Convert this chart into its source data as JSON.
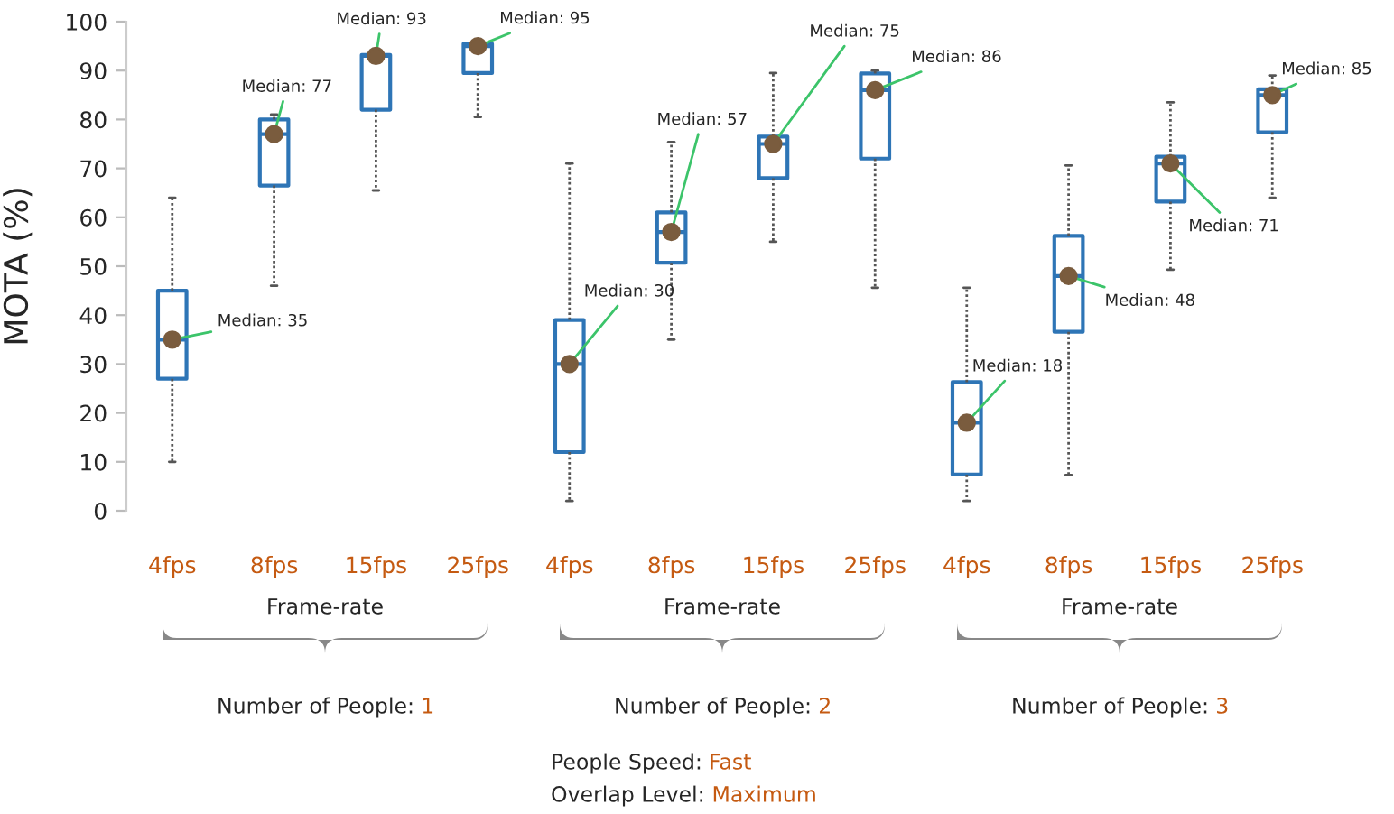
{
  "chart_data": [
    {
      "type": "box",
      "ylabel": "MOTA (%)",
      "xlabel": "Frame-rate",
      "categories": [
        "4fps",
        "8fps",
        "15fps",
        "25fps"
      ],
      "ylim": [
        0,
        100
      ],
      "yticks": [
        0,
        10,
        20,
        30,
        40,
        50,
        60,
        70,
        80,
        90,
        100
      ],
      "grid": false,
      "color": "#2e75b6",
      "boxes": [
        {
          "low": 10,
          "q1": 27,
          "median": 35,
          "q3": 45,
          "high": 64
        },
        {
          "low": 46,
          "q1": 66.5,
          "median": 77,
          "q3": 80,
          "high": 81
        },
        {
          "low": 65.5,
          "q1": 82,
          "median": 93,
          "q3": 93.2,
          "high": 93.5
        },
        {
          "low": 80.5,
          "q1": 89.5,
          "median": 95,
          "q3": 95.5,
          "high": 95.7
        }
      ],
      "annotations": [
        {
          "text": "Median: 35",
          "x": "4fps",
          "y": 35
        },
        {
          "text": "Median: 77",
          "x": "8fps",
          "y": 77
        },
        {
          "text": "Median: 93",
          "x": "15fps",
          "y": 93
        },
        {
          "text": "Median: 95",
          "x": "25fps",
          "y": 95
        },
        "Number of People: 1"
      ]
    },
    {
      "type": "box",
      "xlabel": "Frame-rate",
      "categories": [
        "4fps",
        "8fps",
        "15fps",
        "25fps"
      ],
      "ylim": [
        0,
        100
      ],
      "tick_labels": "x",
      "grid": false,
      "color": "#2e75b6",
      "boxes": [
        {
          "low": 2,
          "q1": 12,
          "median": 30,
          "q3": 39,
          "high": 71
        },
        {
          "low": 35,
          "q1": 50.7,
          "median": 57,
          "q3": 61,
          "high": 75.4
        },
        {
          "low": 55,
          "q1": 68,
          "median": 75,
          "q3": 76.5,
          "high": 89.5
        },
        {
          "low": 45.6,
          "q1": 72,
          "median": 86,
          "q3": 89.4,
          "high": 90
        }
      ],
      "annotations": [
        {
          "text": "Median: 30",
          "x": "4fps",
          "y": 30
        },
        {
          "text": "Median: 57",
          "x": "8fps",
          "y": 57
        },
        {
          "text": "Median: 75",
          "x": "15fps",
          "y": 75
        },
        {
          "text": "Median: 86",
          "x": "25fps",
          "y": 86
        },
        "Number of People: 2",
        "People Speed: Fast",
        "Overlap Level: Maximum"
      ]
    },
    {
      "type": "box",
      "xlabel": "Frame-rate",
      "categories": [
        "4fps",
        "8fps",
        "15fps",
        "25fps"
      ],
      "ylim": [
        0,
        100
      ],
      "tick_labels": "x",
      "grid": false,
      "color": "#2e75b6",
      "boxes": [
        {
          "low": 2,
          "q1": 7.4,
          "median": 18,
          "q3": 26.3,
          "high": 45.6
        },
        {
          "low": 7.3,
          "q1": 36.6,
          "median": 48,
          "q3": 56.2,
          "high": 70.6
        },
        {
          "low": 49.3,
          "q1": 63.2,
          "median": 71,
          "q3": 72.4,
          "high": 83.5
        },
        {
          "low": 64,
          "q1": 77.4,
          "median": 85,
          "q3": 86.2,
          "high": 89
        }
      ],
      "annotations": [
        {
          "text": "Median: 18",
          "x": "4fps",
          "y": 18
        },
        {
          "text": "Median: 48",
          "x": "8fps",
          "y": 48
        },
        {
          "text": "Median: 71",
          "x": "15fps",
          "y": 71
        },
        {
          "text": "Median: 85",
          "x": "25fps",
          "y": 85
        },
        "Number of People: 3"
      ]
    }
  ]
}
